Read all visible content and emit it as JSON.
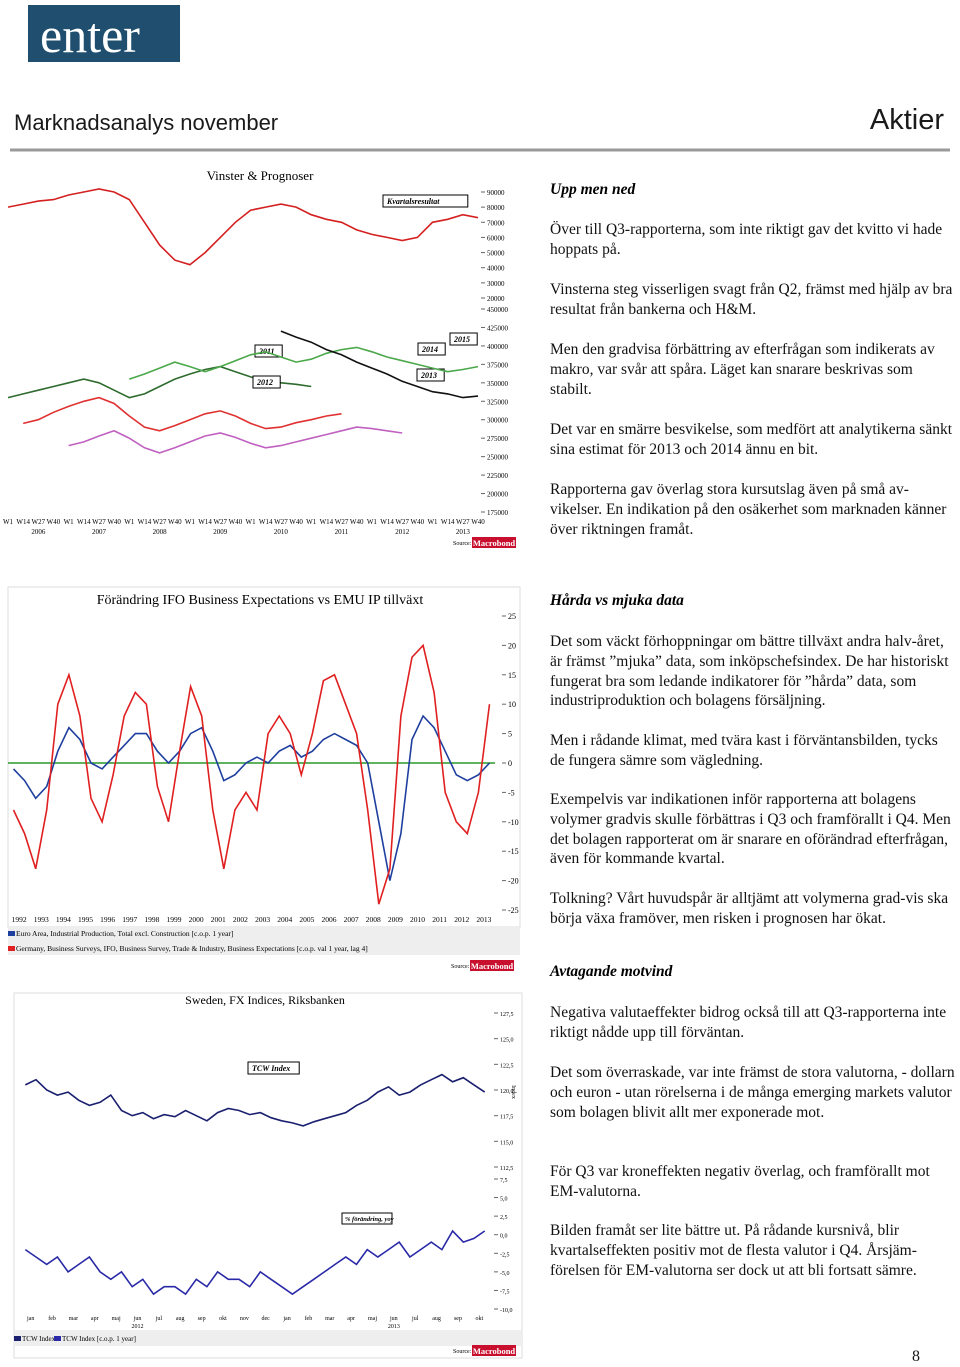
{
  "header": {
    "logo": "enter",
    "title": "Marknadsanalys november",
    "section": "Aktier"
  },
  "charts": [
    {
      "title": "Vinster & Prognoser",
      "categories": [
        "W1",
        "W14",
        "W27",
        "W40",
        "W1",
        "W14",
        "W27",
        "W40",
        "W1",
        "W14",
        "W27",
        "W40",
        "W1",
        "W14",
        "W27",
        "W40",
        "W1",
        "W14",
        "W27",
        "W40",
        "W1",
        "W14",
        "W27",
        "W40",
        "W1",
        "W14",
        "W27",
        "W40",
        "W1",
        "W14",
        "W27",
        "W40"
      ],
      "years": [
        "2006",
        "2007",
        "2008",
        "2009",
        "2010",
        "2011",
        "2012",
        "2013"
      ],
      "panels": [
        {
          "ylim": [
            20000,
            90000
          ],
          "yticks": [
            90000,
            80000,
            70000,
            60000,
            50000,
            40000,
            30000,
            20000
          ],
          "series": [
            {
              "name": "Kvartalsresultat",
              "color": "#d42020",
              "values": [
                80000,
                82000,
                84000,
                85000,
                88000,
                90000,
                92000,
                90000,
                85000,
                70000,
                55000,
                45000,
                42000,
                50000,
                60000,
                70000,
                78000,
                80000,
                82000,
                80000,
                75000,
                72000,
                70000,
                65000,
                62000,
                60000,
                58000,
                60000,
                70000,
                72000,
                75000,
                73000
              ]
            }
          ]
        },
        {
          "ylim": [
            175000,
            450000
          ],
          "yticks": [
            450000,
            425000,
            400000,
            375000,
            350000,
            325000,
            300000,
            275000,
            250000,
            225000,
            200000,
            175000
          ],
          "series": [
            {
              "name": "2011",
              "color": "#2e6b2e",
              "values": [
                330000,
                335000,
                340000,
                345000,
                350000,
                355000,
                350000,
                340000,
                330000,
                335000,
                345000,
                355000,
                362000,
                368000,
                372000,
                365000,
                358000,
                352000,
                350000,
                348000,
                345000,
                null,
                null,
                null,
                null,
                null,
                null,
                null,
                null,
                null,
                null,
                null
              ]
            },
            {
              "name": "2012",
              "color": "#e03030",
              "values": [
                null,
                295000,
                300000,
                310000,
                318000,
                325000,
                330000,
                322000,
                305000,
                290000,
                285000,
                292000,
                300000,
                308000,
                312000,
                305000,
                295000,
                288000,
                290000,
                296000,
                300000,
                305000,
                308000,
                null,
                null,
                null,
                null,
                null,
                null,
                null,
                null,
                null
              ]
            },
            {
              "name": "2013",
              "color": "#c060c0",
              "values": [
                null,
                null,
                null,
                null,
                265000,
                270000,
                278000,
                285000,
                275000,
                262000,
                255000,
                262000,
                270000,
                278000,
                282000,
                276000,
                268000,
                262000,
                265000,
                270000,
                275000,
                280000,
                285000,
                290000,
                288000,
                285000,
                282000,
                null,
                null,
                null,
                null,
                null
              ]
            },
            {
              "name": "2014",
              "color": "#4aa84a",
              "values": [
                null,
                null,
                null,
                null,
                null,
                null,
                null,
                null,
                355000,
                362000,
                370000,
                378000,
                372000,
                365000,
                372000,
                380000,
                388000,
                392000,
                385000,
                378000,
                382000,
                390000,
                395000,
                398000,
                392000,
                385000,
                380000,
                375000,
                370000,
                365000,
                368000,
                372000
              ]
            },
            {
              "name": "2015",
              "color": "#111111",
              "values": [
                null,
                null,
                null,
                null,
                null,
                null,
                null,
                null,
                null,
                null,
                null,
                null,
                null,
                null,
                null,
                null,
                null,
                null,
                420000,
                412000,
                405000,
                395000,
                388000,
                378000,
                370000,
                362000,
                352000,
                345000,
                338000,
                335000,
                330000,
                332000
              ]
            }
          ]
        }
      ],
      "source": "Source:",
      "source_brand": "Macrobond"
    },
    {
      "title": "Förändring IFO Business Expectations vs EMU IP tillväxt",
      "categories": [
        "1992",
        "1993",
        "1994",
        "1995",
        "1996",
        "1997",
        "1998",
        "1999",
        "2000",
        "2001",
        "2002",
        "2003",
        "2004",
        "2005",
        "2006",
        "2007",
        "2008",
        "2009",
        "2010",
        "2011",
        "2012",
        "2013"
      ],
      "panels": [
        {
          "ylim": [
            -25,
            25
          ],
          "yticks": [
            25,
            20,
            15,
            10,
            5,
            0,
            -5,
            -10,
            -15,
            -20,
            -25
          ],
          "series": [
            {
              "name": "Euro Area, Industrial Production, Total excl. Construction [c.o.p. 1 year]",
              "color": "#1f3f9f",
              "values": [
                -1,
                -3,
                -6,
                -4,
                2,
                6,
                4,
                0,
                -1,
                1,
                3,
                5,
                5,
                2,
                0,
                2,
                5,
                6,
                2,
                -3,
                -2,
                0,
                1,
                0,
                2,
                3,
                1,
                2,
                4,
                5,
                4,
                3,
                0,
                -10,
                -20,
                -12,
                4,
                8,
                6,
                2,
                -2,
                -3,
                -2,
                0
              ]
            },
            {
              "name": "Germany, Business Surveys, IFO, Business Survey, Trade & Industry, Business Expectations [c.o.p. val 1 year, lag 4]",
              "color": "#e02020",
              "values": [
                -8,
                -12,
                -18,
                -8,
                10,
                15,
                8,
                -6,
                -10,
                -2,
                8,
                12,
                10,
                -4,
                -10,
                2,
                13,
                8,
                -8,
                -18,
                -8,
                -5,
                -8,
                5,
                8,
                5,
                -2,
                5,
                14,
                15,
                10,
                5,
                -8,
                -24,
                -18,
                8,
                18,
                20,
                12,
                -5,
                -10,
                -12,
                -5,
                10
              ]
            }
          ]
        }
      ],
      "source": "Source:",
      "source_brand": "Macrobond"
    },
    {
      "title": "Sweden, FX Indices, Riksbanken",
      "categories": [
        "jan",
        "feb",
        "mar",
        "apr",
        "maj",
        "jun",
        "jul",
        "aug",
        "sep",
        "okt",
        "nov",
        "dec",
        "jan",
        "feb",
        "mar",
        "apr",
        "maj",
        "jun",
        "jul",
        "aug",
        "sep",
        "okt"
      ],
      "years": [
        "2012",
        "2013"
      ],
      "panels": [
        {
          "ylim": [
            112.5,
            127.5
          ],
          "yticks": [
            {
              "value": 127.5,
              "label": "127,5"
            },
            {
              "value": 125,
              "label": "125,0"
            },
            {
              "value": 122.5,
              "label": "122,5"
            },
            {
              "value": 120,
              "label": "120,0"
            },
            {
              "value": 117.5,
              "label": "117,5"
            },
            {
              "value": 115,
              "label": "115,0"
            },
            {
              "value": 112.5,
              "label": "112,5"
            }
          ],
          "axis_label": "Index",
          "series": [
            {
              "name": "TCW Index",
              "color": "#1a1f6e",
              "values": [
                120.5,
                121,
                120,
                119.5,
                119.8,
                119,
                118.5,
                118.8,
                119.5,
                118,
                117.5,
                117.8,
                117.2,
                117.6,
                117.4,
                118,
                117.5,
                117,
                117.8,
                118.2,
                118,
                117.6,
                117.8,
                117.3,
                117,
                116.8,
                116.5,
                116.9,
                117.2,
                117.5,
                117.8,
                118.5,
                119,
                119.8,
                120.3,
                119.5,
                119.8,
                120.5,
                121,
                121.5,
                120.8,
                121.2,
                120.5,
                119.8
              ]
            }
          ]
        },
        {
          "ylim": [
            -10,
            7.5
          ],
          "yticks": [
            {
              "value": 7.5,
              "label": "7,5"
            },
            {
              "value": 5,
              "label": "5,0"
            },
            {
              "value": 2.5,
              "label": "2,5"
            },
            {
              "value": 0,
              "label": "0,0"
            },
            {
              "value": -2.5,
              "label": "-2,5"
            },
            {
              "value": -5,
              "label": "-5,0"
            },
            {
              "value": -7.5,
              "label": "-7,5"
            },
            {
              "value": -10,
              "label": "-10,0"
            }
          ],
          "annotation": "% förändring, yoy",
          "series": [
            {
              "name": "TCW Index [c.o.p. 1 year]",
              "color": "#2a2aa8",
              "values": [
                -2,
                -3,
                -4,
                -3,
                -5,
                -4,
                -3,
                -5,
                -6,
                -5,
                -7,
                -6,
                -8,
                -7,
                -7,
                -8,
                -6,
                -7,
                -5,
                -6,
                -6,
                -7,
                -5,
                -6,
                -7,
                -8,
                -7,
                -6,
                -5,
                -4,
                -3,
                -4,
                -2,
                -3,
                -2,
                -1,
                -3,
                -2,
                -1,
                -2,
                0.5,
                -1,
                -0.5,
                0.5
              ]
            }
          ]
        }
      ],
      "source": "Source:",
      "source_brand": "Macrobond"
    }
  ],
  "article": {
    "sections": [
      {
        "heading": "Upp men ned",
        "paragraphs": [
          "Över till Q3-rapporterna, som inte riktigt gav det kvitto vi hade hoppats på.",
          "Vinsterna steg visserligen svagt från Q2, främst med hjälp av bra resultat från bankerna och H&M.",
          "Men den gradvisa förbättring av efterfrågan som indikerats av makro, var svår att spåra. Läget kan snarare beskrivas som stabilt.",
          "Det var en smärre besvikelse, som medfört att analytikerna sänkt sina estimat för 2013 och 2014 ännu en bit.",
          "Rapporterna gav överlag stora kursutslag även på små av-vikelser. En indikation på den osäkerhet som marknaden känner över riktningen framåt."
        ]
      },
      {
        "heading": "Hårda vs mjuka data",
        "paragraphs": [
          "Det som väckt förhoppningar om bättre tillväxt andra halv-året, är främst ”mjuka” data, som inköpschefsindex. De har historiskt fungerat bra som ledande indikatorer för ”hårda” data, som industriproduktion och bolagens försäljning.",
          "Men i rådande klimat, med tvära kast i förväntansbilden, tycks de fungera sämre som vägledning.",
          "Exempelvis var indikationen inför rapporterna att bolagens volymer gradvis skulle förbättras i Q3 och framförallt i Q4. Men det bolagen rapporterat om är snarare en oförändrad efterfrågan, även för kommande kvartal.",
          "Tolkning? Vårt huvudspår är alltjämt att volymerna grad-vis ska börja växa framöver, men risken i prognosen har ökat."
        ]
      },
      {
        "heading": "Avtagande motvind",
        "paragraphs": [
          "Negativa valutaeffekter bidrog också till att Q3-rapporterna inte riktigt nådde upp till förväntan.",
          "Det som överraskade, var inte främst de stora valutorna, - dollarn och euron - utan rörelserna i de många emerging markets valutor som bolagen blivit allt mer exponerade mot.",
          "För Q3 var kroneffekten negativ överlag, och framförallt mot EM-valutorna.",
          "Bilden framåt ser lite bättre ut. På rådande kursnivå, blir kvartalseffekten positiv mot de flesta valutor i Q4. Årsjäm-förelsen för EM-valutorna ser dock ut att bli fortsatt sämre."
        ]
      }
    ]
  },
  "page_number": "8"
}
